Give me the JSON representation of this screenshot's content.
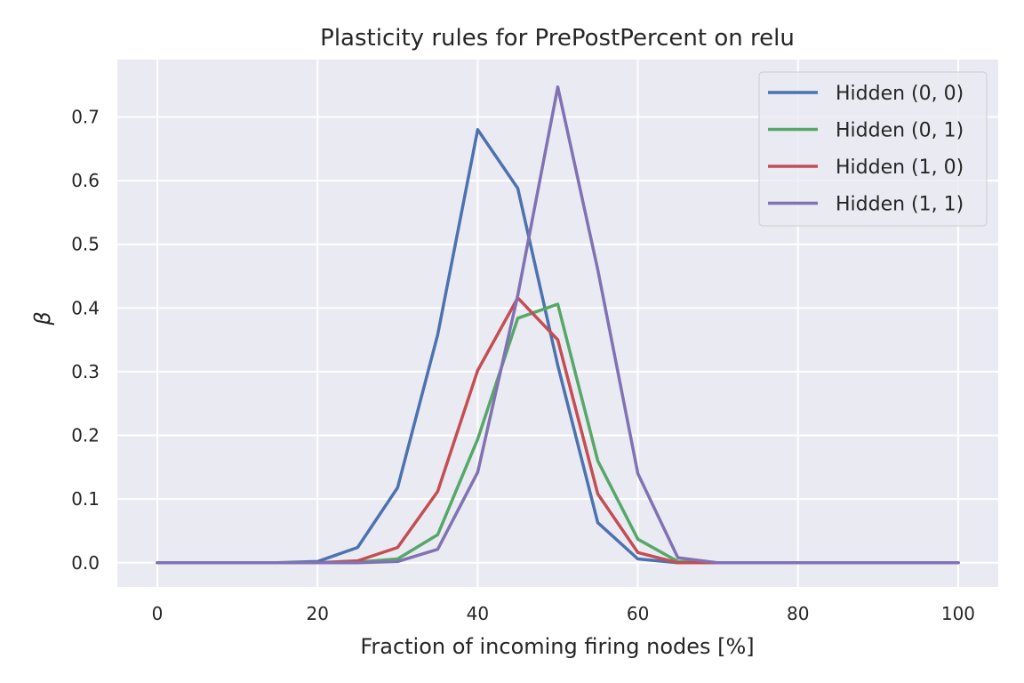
{
  "chart_data": {
    "type": "line",
    "title": "Plasticity rules for PrePostPercent on relu",
    "xlabel": "Fraction of incoming firing nodes [%]",
    "ylabel": "β",
    "xlim": [
      -5,
      105
    ],
    "ylim": [
      -0.038,
      0.79
    ],
    "xticks": [
      0,
      20,
      40,
      60,
      80,
      100
    ],
    "yticks": [
      0.0,
      0.1,
      0.2,
      0.3,
      0.4,
      0.5,
      0.6,
      0.7
    ],
    "xtick_labels": [
      "0",
      "20",
      "40",
      "60",
      "80",
      "100"
    ],
    "ytick_labels": [
      "0.0",
      "0.1",
      "0.2",
      "0.3",
      "0.4",
      "0.5",
      "0.6",
      "0.7"
    ],
    "grid": true,
    "legend_position": "top-right",
    "x": [
      0,
      5,
      10,
      15,
      20,
      25,
      30,
      35,
      40,
      45,
      50,
      55,
      60,
      65,
      70,
      75,
      80,
      85,
      90,
      95,
      100
    ],
    "series": [
      {
        "name": "Hidden (0, 0)",
        "color": "#4c72b0",
        "values": [
          0.0,
          0.0,
          0.0,
          0.0,
          0.002,
          0.024,
          0.118,
          0.358,
          0.68,
          0.588,
          0.31,
          0.063,
          0.006,
          0.0,
          0.0,
          0.0,
          0.0,
          0.0,
          0.0,
          0.0,
          0.0
        ]
      },
      {
        "name": "Hidden (0, 1)",
        "color": "#55a868",
        "values": [
          0.0,
          0.0,
          0.0,
          0.0,
          0.0,
          0.001,
          0.006,
          0.044,
          0.194,
          0.384,
          0.406,
          0.16,
          0.037,
          0.002,
          0.0,
          0.0,
          0.0,
          0.0,
          0.0,
          0.0,
          0.0
        ]
      },
      {
        "name": "Hidden (1, 0)",
        "color": "#c44e52",
        "values": [
          0.0,
          0.0,
          0.0,
          0.0,
          0.0,
          0.003,
          0.024,
          0.112,
          0.302,
          0.416,
          0.35,
          0.108,
          0.016,
          0.0,
          0.0,
          0.0,
          0.0,
          0.0,
          0.0,
          0.0,
          0.0
        ]
      },
      {
        "name": "Hidden (1, 1)",
        "color": "#8172b3",
        "values": [
          0.0,
          0.0,
          0.0,
          0.0,
          0.0,
          0.0,
          0.002,
          0.021,
          0.142,
          0.42,
          0.747,
          0.46,
          0.14,
          0.008,
          0.0,
          0.0,
          0.0,
          0.0,
          0.0,
          0.0,
          0.0
        ]
      }
    ]
  },
  "colors": {
    "plot_background": "#eaeaf2",
    "grid": "#ffffff",
    "text": "#262626"
  }
}
